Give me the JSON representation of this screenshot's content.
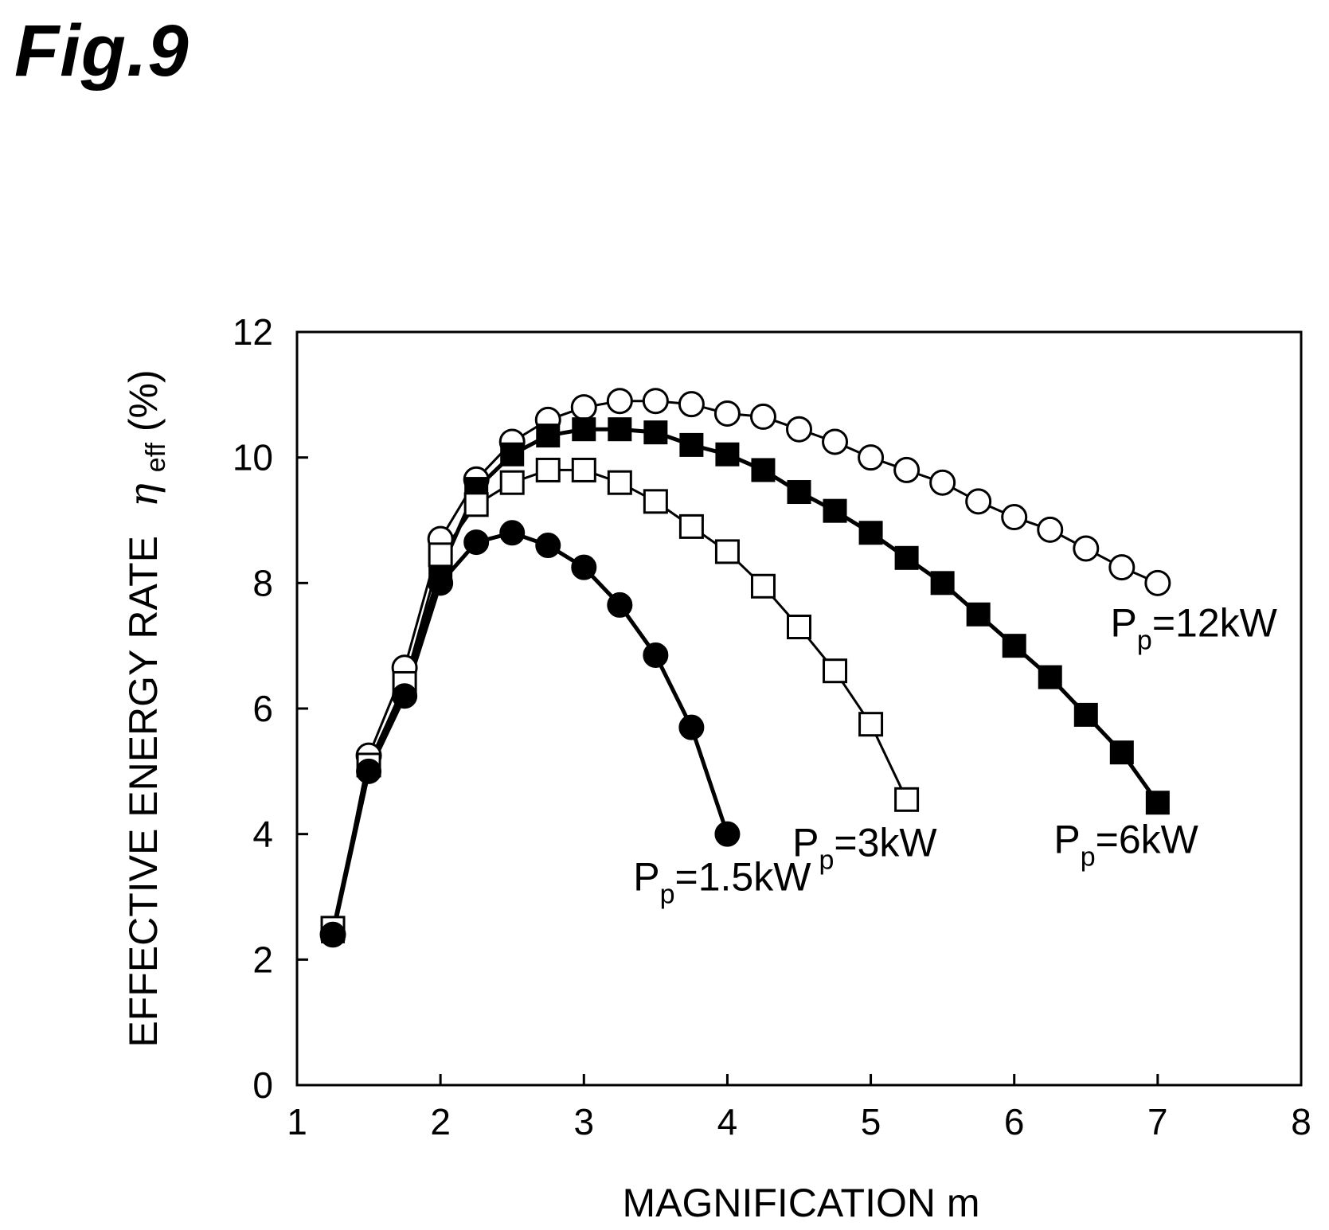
{
  "figure_label": "Fig.9",
  "chart_data": {
    "type": "line",
    "title": "",
    "xlabel": "MAGNIFICATION m",
    "ylabel_main": "EFFECTIVE ENERGY RATE",
    "ylabel_symbol": "η",
    "ylabel_subscript": "eff",
    "ylabel_unit": "(%)",
    "xlim": [
      1,
      8
    ],
    "ylim": [
      0,
      12
    ],
    "xticks": [
      1,
      2,
      3,
      4,
      5,
      6,
      7,
      8
    ],
    "yticks": [
      0,
      2,
      4,
      6,
      8,
      10,
      12
    ],
    "grid": false,
    "legend": "none (series labeled directly on plot)",
    "series": [
      {
        "name": "Pp=1.5kW",
        "label_main": "P",
        "label_sub": "p",
        "label_rest": "=1.5kW",
        "marker": "filled-circle",
        "x": [
          1.25,
          1.5,
          1.75,
          2.0,
          2.25,
          2.5,
          2.75,
          3.0,
          3.25,
          3.5,
          3.75,
          4.0
        ],
        "y": [
          2.4,
          5.0,
          6.2,
          8.0,
          8.65,
          8.8,
          8.6,
          8.25,
          7.65,
          6.85,
          5.7,
          4.0
        ]
      },
      {
        "name": "Pp=3kW",
        "label_main": "P",
        "label_sub": "p",
        "label_rest": "=3kW",
        "marker": "open-square",
        "x": [
          1.25,
          1.5,
          1.75,
          2.0,
          2.25,
          2.5,
          2.75,
          3.0,
          3.25,
          3.5,
          3.75,
          4.0,
          4.25,
          4.5,
          4.75,
          5.0,
          5.25
        ],
        "y": [
          2.5,
          5.1,
          6.4,
          8.45,
          9.25,
          9.6,
          9.8,
          9.8,
          9.6,
          9.3,
          8.9,
          8.5,
          7.95,
          7.3,
          6.6,
          5.75,
          4.55
        ]
      },
      {
        "name": "Pp=6kW",
        "label_main": "P",
        "label_sub": "p",
        "label_rest": "=6kW",
        "marker": "filled-square",
        "x": [
          1.25,
          1.5,
          1.75,
          2.0,
          2.25,
          2.5,
          2.75,
          3.0,
          3.25,
          3.5,
          3.75,
          4.0,
          4.25,
          4.5,
          4.75,
          5.0,
          5.25,
          5.5,
          5.75,
          6.0,
          6.25,
          6.5,
          6.75,
          7.0
        ],
        "y": [
          2.45,
          5.1,
          6.35,
          8.2,
          9.5,
          10.05,
          10.35,
          10.45,
          10.45,
          10.4,
          10.2,
          10.05,
          9.8,
          9.45,
          9.15,
          8.8,
          8.4,
          8.0,
          7.5,
          7.0,
          6.5,
          5.9,
          5.3,
          4.5
        ]
      },
      {
        "name": "Pp=12kW",
        "label_main": "P",
        "label_sub": "p",
        "label_rest": "=12kW",
        "marker": "open-circle",
        "x": [
          1.25,
          1.5,
          1.75,
          2.0,
          2.25,
          2.5,
          2.75,
          3.0,
          3.25,
          3.5,
          3.75,
          4.0,
          4.25,
          4.5,
          4.75,
          5.0,
          5.25,
          5.5,
          5.75,
          6.0,
          6.25,
          6.5,
          6.75,
          7.0
        ],
        "y": [
          2.4,
          5.25,
          6.65,
          8.7,
          9.65,
          10.25,
          10.6,
          10.8,
          10.9,
          10.9,
          10.85,
          10.7,
          10.65,
          10.45,
          10.25,
          10.0,
          9.8,
          9.6,
          9.3,
          9.05,
          8.85,
          8.55,
          8.25,
          8.0
        ]
      }
    ]
  }
}
